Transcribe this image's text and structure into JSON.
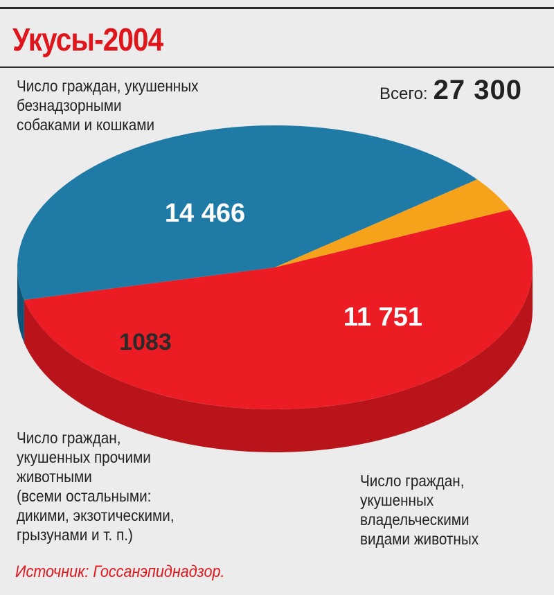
{
  "title": "Укусы-2004",
  "total": {
    "label": "Всего:",
    "value": "27 300"
  },
  "labels": {
    "stray": "Число граждан, укушенных\nбезнадзорными\nсобаками и кошками",
    "other": "Число граждан,\nукушенных прочими\nживотными\n(всеми остальными:\nдикими, экзотическими,\nгрызунами и т. п.)",
    "owned": "Число граждан,\nукушенных\nвладельческими\nвидами животных"
  },
  "source": "Источник: Госсанэпиднадзор.",
  "colors": {
    "red": "#ec1c24",
    "red_side": "#b8141a",
    "orange": "#f7a21b",
    "orange_side": "#c07a10",
    "blue": "#1f7ba6",
    "blue_side": "#0e5578"
  },
  "chart_data": {
    "type": "pie",
    "title": "Укусы-2004",
    "total": 27300,
    "slices": [
      {
        "label": "Число граждан, укушенных безнадзорными собаками и кошками",
        "value": 14466,
        "display": "14 466",
        "color": "#ec1c24"
      },
      {
        "label": "Число граждан, укушенных владельческими видами животных",
        "value": 11751,
        "display": "11 751",
        "color": "#1f7ba6"
      },
      {
        "label": "Число граждан, укушенных прочими животными (всеми остальными: дикими, экзотическими, грызунами и т. п.)",
        "value": 1083,
        "display": "1083",
        "color": "#f7a21b"
      }
    ]
  }
}
